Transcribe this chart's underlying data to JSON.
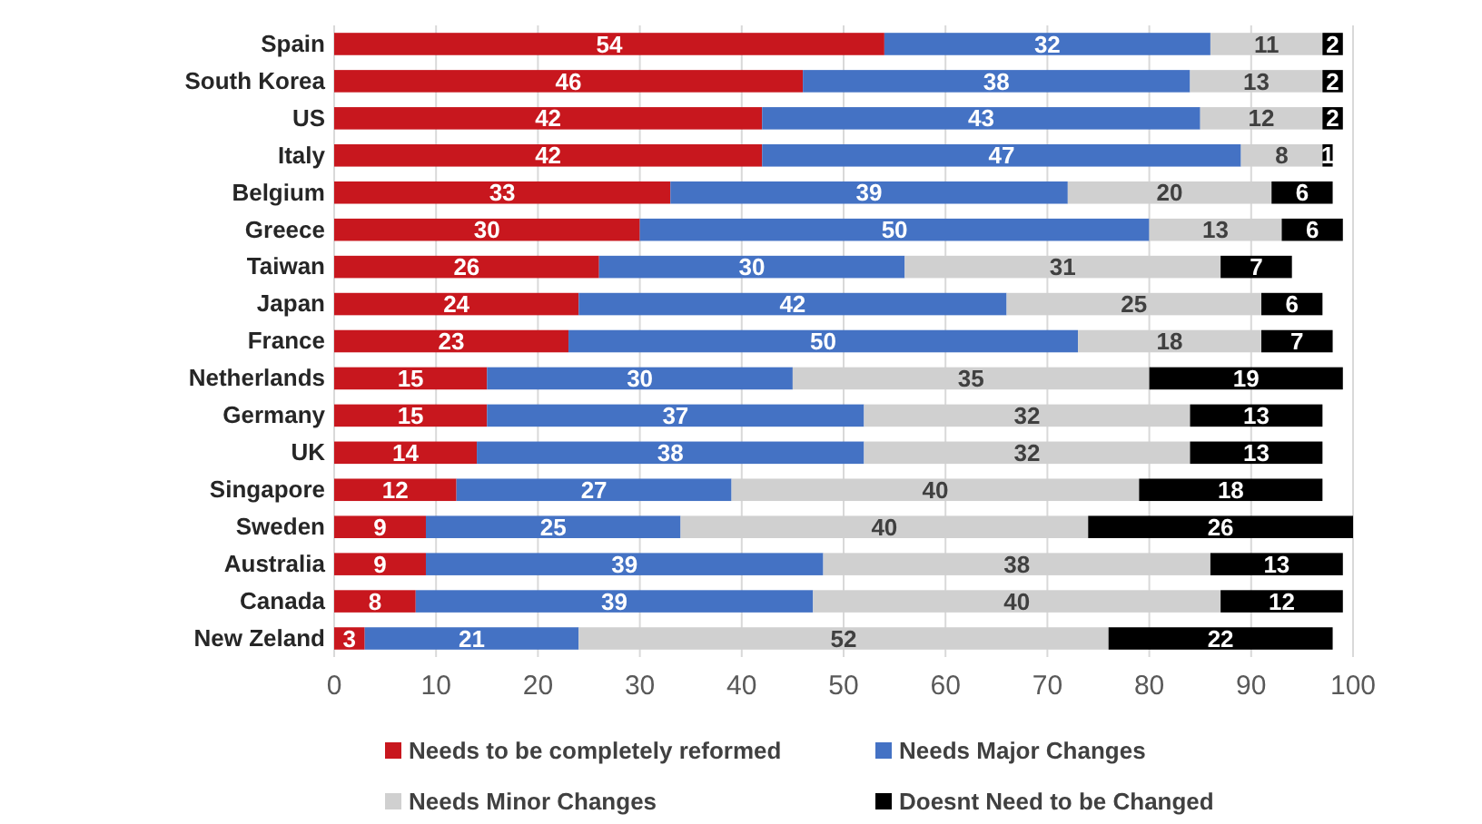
{
  "chart_data": {
    "type": "bar",
    "orientation": "horizontal",
    "stacked": true,
    "data_labels": true,
    "grid": "x",
    "legend": "bottom",
    "categories": [
      "Spain",
      "South Korea",
      "US",
      "Italy",
      "Belgium",
      "Greece",
      "Taiwan",
      "Japan",
      "France",
      "Netherlands",
      "Germany",
      "UK",
      "Singapore",
      "Sweden",
      "Australia",
      "Canada",
      "New Zeland"
    ],
    "xlim": [
      0,
      100
    ],
    "xticks": [
      0,
      10,
      20,
      30,
      40,
      50,
      60,
      70,
      80,
      90,
      100
    ],
    "series": [
      {
        "name": "Needs to be completely reformed",
        "color": "#c8171e",
        "values": [
          54,
          46,
          42,
          42,
          33,
          30,
          26,
          24,
          23,
          15,
          15,
          14,
          12,
          9,
          9,
          8,
          3
        ]
      },
      {
        "name": "Needs Major Changes",
        "color": "#4472c4",
        "values": [
          32,
          38,
          43,
          47,
          39,
          50,
          30,
          42,
          50,
          30,
          37,
          38,
          27,
          25,
          39,
          39,
          21
        ]
      },
      {
        "name": "Needs Minor Changes",
        "color": "#d0d0d0",
        "values": [
          11,
          13,
          12,
          8,
          20,
          13,
          31,
          25,
          18,
          35,
          32,
          32,
          40,
          40,
          38,
          40,
          52
        ]
      },
      {
        "name": "Doesnt Need to be Changed",
        "color": "#000000",
        "values": [
          2,
          2,
          2,
          1,
          6,
          6,
          7,
          6,
          7,
          19,
          13,
          13,
          18,
          26,
          13,
          12,
          22
        ]
      }
    ]
  }
}
